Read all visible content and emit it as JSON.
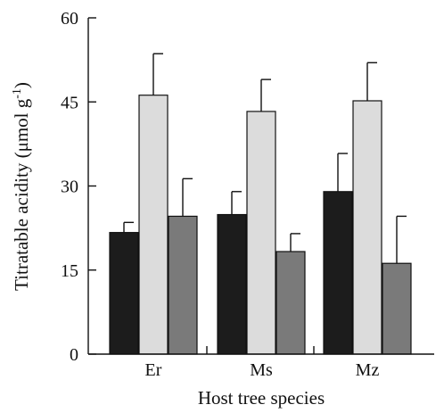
{
  "chart_data": {
    "type": "bar",
    "categories": [
      "Er",
      "Ms",
      "Mz"
    ],
    "series": [
      {
        "values": [
          21.7,
          24.9,
          29.0
        ],
        "errors": [
          1.8,
          4.1,
          6.8
        ],
        "color": "#1c1c1c"
      },
      {
        "values": [
          46.2,
          43.3,
          45.2
        ],
        "errors": [
          7.4,
          5.7,
          6.8
        ],
        "color": "#dcdcdc"
      },
      {
        "values": [
          24.6,
          18.3,
          16.2
        ],
        "errors": [
          6.7,
          3.2,
          8.4
        ],
        "color": "#7a7a7a"
      }
    ],
    "ylim": [
      0,
      60
    ],
    "yticks": [
      "0",
      "15",
      "30",
      "45",
      "60"
    ],
    "ytick_values": [
      0,
      15,
      30,
      45,
      60
    ],
    "xlabel": "Host tree species",
    "ylabel_main": "Titratable acidity (μmol g",
    "ylabel_sup": "-1",
    "ylabel_end": ")",
    "grid": false,
    "legend": "none"
  }
}
